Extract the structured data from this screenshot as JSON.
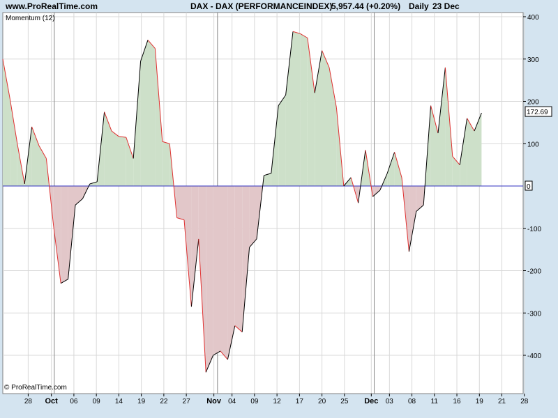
{
  "header": {
    "site": "www.ProRealTime.com",
    "title": "DAX - DAX (PERFORMANCEINDEX)",
    "price": "5,957.44 (+0.20%)",
    "period": "Daily",
    "date": "23 Dec"
  },
  "indicator_label": "Momentum (12)",
  "watermark": "© ProRealTime.com",
  "colors": {
    "background": "#d4e4f0",
    "plot_bg": "#ffffff",
    "positive_fill": "#cde0c9",
    "negative_fill": "#e2c7c9",
    "up_line": "#000000",
    "down_line": "#e03030",
    "zero_line": "#3030c0",
    "grid": "#d8d8d8",
    "month_separator": "#888888"
  },
  "chart_data": {
    "type": "area",
    "title": "Momentum (12)",
    "xlabel": "",
    "ylabel": "",
    "ylim": [
      -460,
      410
    ],
    "yticks": [
      400,
      300,
      200,
      100,
      0,
      -100,
      -200,
      -300,
      -400
    ],
    "current_value_label": "172.69",
    "zero_label": "0",
    "x_ticks": [
      {
        "label": "28",
        "bold": false,
        "i": 3.5
      },
      {
        "label": "Oct",
        "bold": true,
        "i": 6.7
      },
      {
        "label": "06",
        "bold": false,
        "i": 9.8
      },
      {
        "label": "09",
        "bold": false,
        "i": 12.9
      },
      {
        "label": "14",
        "bold": false,
        "i": 16.0
      },
      {
        "label": "19",
        "bold": false,
        "i": 19.1
      },
      {
        "label": "22",
        "bold": false,
        "i": 22.2
      },
      {
        "label": "27",
        "bold": false,
        "i": 25.3
      },
      {
        "label": "Nov",
        "bold": true,
        "i": 29.1
      },
      {
        "label": "04",
        "bold": false,
        "i": 31.6
      },
      {
        "label": "09",
        "bold": false,
        "i": 34.7
      },
      {
        "label": "12",
        "bold": false,
        "i": 37.8
      },
      {
        "label": "17",
        "bold": false,
        "i": 40.9
      },
      {
        "label": "20",
        "bold": false,
        "i": 44.0
      },
      {
        "label": "25",
        "bold": false,
        "i": 47.1
      },
      {
        "label": "Dec",
        "bold": true,
        "i": 50.8
      },
      {
        "label": "03",
        "bold": false,
        "i": 53.3
      },
      {
        "label": "08",
        "bold": false,
        "i": 56.4
      },
      {
        "label": "11",
        "bold": false,
        "i": 59.5
      },
      {
        "label": "16",
        "bold": false,
        "i": 62.6
      },
      {
        "label": "19",
        "bold": false,
        "i": 65.7
      },
      {
        "label": "21",
        "bold": false,
        "i": 68.8
      },
      {
        "label": "28",
        "bold": false,
        "i": 71.9
      }
    ],
    "month_separators": [
      7.1,
      29.6,
      51.2
    ],
    "series": [
      {
        "values": [
          300,
          205,
          100,
          5,
          140,
          95,
          65,
          -95,
          -230,
          -220,
          -45,
          -30,
          5,
          10,
          175,
          130,
          117,
          115,
          65,
          295,
          345,
          325,
          105,
          100,
          -75,
          -80,
          -285,
          -125,
          -440,
          -400,
          -390,
          -410,
          -330,
          -345,
          -145,
          -125,
          25,
          30,
          190,
          215,
          365,
          360,
          350,
          220,
          320,
          280,
          185,
          0,
          20,
          -40,
          85,
          -25,
          -10,
          30,
          80,
          20,
          -155,
          -60,
          -45,
          190,
          125,
          280,
          70,
          50,
          160,
          130,
          172.69
        ]
      }
    ]
  }
}
